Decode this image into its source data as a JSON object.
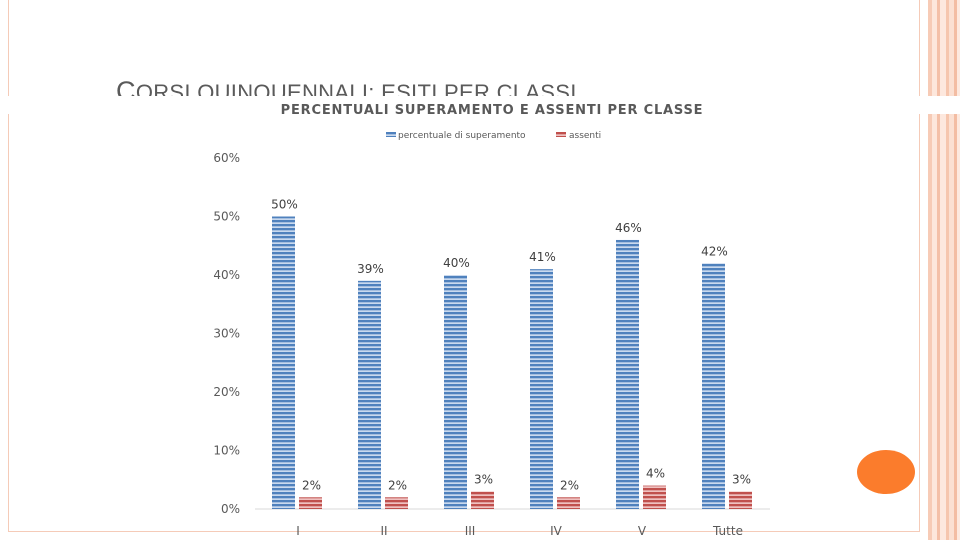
{
  "slide": {
    "title_first_letter": "C",
    "title_rest": "ORSI QUINQUENNALI: ESITI PER CLASSI"
  },
  "colors": {
    "blue": "#4f81bd",
    "red": "#c0504d",
    "accent": "#fb7c2c"
  },
  "chart_data": {
    "type": "bar",
    "title": "PERCENTUALI SUPERAMENTO E ASSENTI PER CLASSE",
    "categories": [
      "I",
      "II",
      "III",
      "IV",
      "V",
      "Tutte"
    ],
    "series": [
      {
        "name": "percentuale di superamento",
        "values": [
          50,
          39,
          40,
          41,
          46,
          42
        ],
        "labels": [
          "50%",
          "39%",
          "40%",
          "41%",
          "46%",
          "42%"
        ]
      },
      {
        "name": "assenti",
        "values": [
          2,
          2,
          3,
          2,
          4,
          3
        ],
        "labels": [
          "2%",
          "2%",
          "3%",
          "2%",
          "4%",
          "3%"
        ]
      }
    ],
    "ylim": [
      0,
      60
    ],
    "yticks": [
      "0%",
      "10%",
      "20%",
      "30%",
      "40%",
      "50%",
      "60%"
    ],
    "legend": "top-right"
  }
}
